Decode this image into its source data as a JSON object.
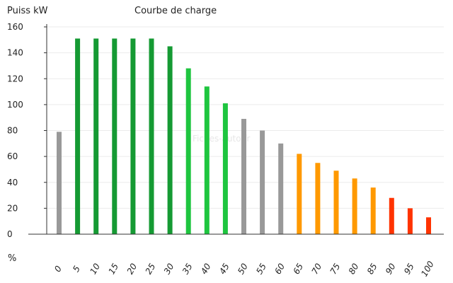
{
  "chart_data": {
    "type": "bar",
    "title": "Courbe de charge",
    "ylabel": "Puiss kW",
    "xlabel": "%",
    "watermark": "Fiches-auto.fr",
    "ylim": [
      0,
      160
    ],
    "yticks": [
      0,
      20,
      40,
      60,
      80,
      100,
      120,
      140,
      160
    ],
    "grid": true,
    "categories": [
      "0",
      "5",
      "10",
      "15",
      "20",
      "25",
      "30",
      "35",
      "40",
      "45",
      "50",
      "55",
      "60",
      "65",
      "70",
      "75",
      "80",
      "85",
      "90",
      "95",
      "100"
    ],
    "values": [
      79,
      151,
      151,
      151,
      151,
      151,
      145,
      128,
      114,
      101,
      89,
      80,
      70,
      62,
      55,
      49,
      43,
      36,
      28,
      20,
      13
    ],
    "bar_colors": [
      "#999999",
      "#159a33",
      "#159a33",
      "#159a33",
      "#159a33",
      "#159a33",
      "#159a33",
      "#1ec53f",
      "#1ec53f",
      "#1ec53f",
      "#999999",
      "#999999",
      "#999999",
      "#ff9900",
      "#ff9900",
      "#ff9900",
      "#ff9900",
      "#ff9900",
      "#ff3300",
      "#ff3300",
      "#ff3300"
    ]
  }
}
